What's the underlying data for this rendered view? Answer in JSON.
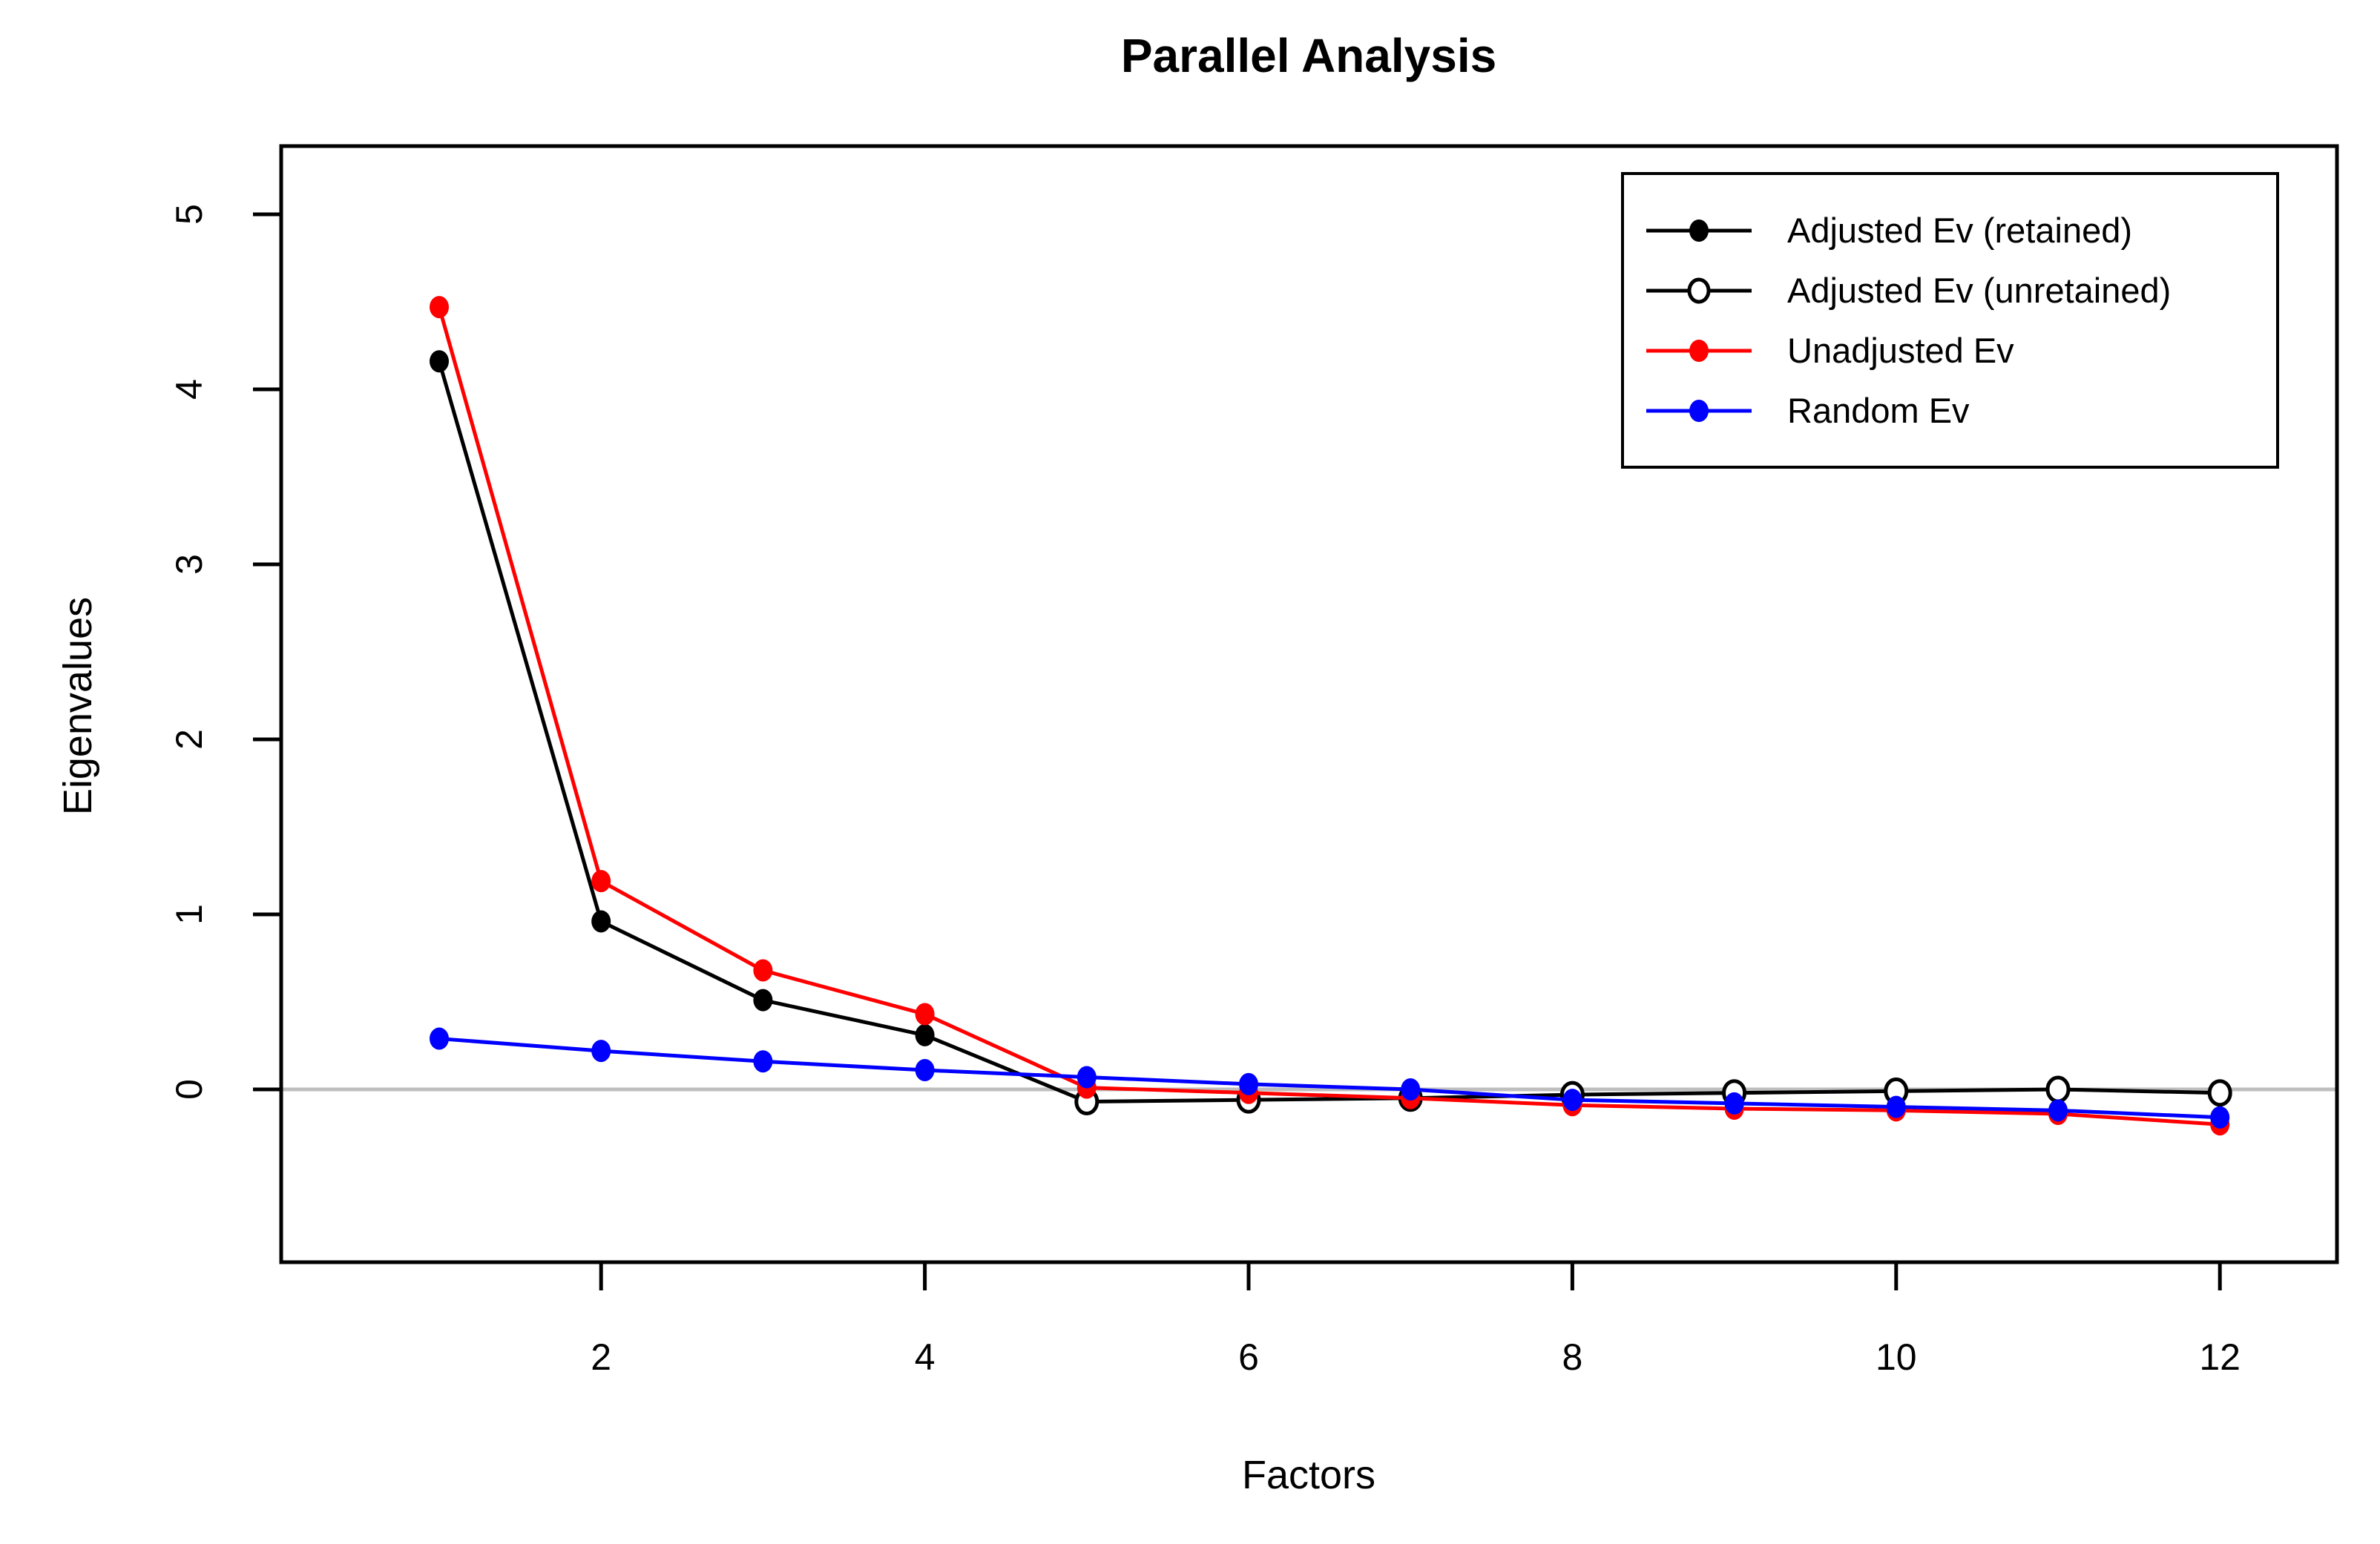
{
  "title": "Parallel Analysis",
  "chart_data": {
    "type": "line",
    "title": "Parallel Analysis",
    "xlabel": "Factors",
    "ylabel": "Eigenvalues",
    "x": [
      1,
      2,
      3,
      4,
      5,
      6,
      7,
      8,
      9,
      10,
      11,
      12
    ],
    "x_ticks": [
      2,
      4,
      6,
      8,
      10,
      12
    ],
    "y_ticks": [
      0,
      1,
      2,
      3,
      4,
      5
    ],
    "xlim": [
      0.02,
      12.73
    ],
    "ylim": [
      -0.99,
      5.39
    ],
    "grid": false,
    "zero_line": true,
    "zero_line_color": "#BEBEBE",
    "series": [
      {
        "name": "Adjusted Ev",
        "color": "#000000",
        "retained_count": 4,
        "values": [
          4.16,
          0.96,
          0.51,
          0.31,
          -0.07,
          -0.06,
          -0.05,
          -0.03,
          -0.02,
          -0.01,
          0.0,
          -0.02
        ]
      },
      {
        "name": "Unadjusted Ev",
        "color": "#FF0000",
        "values": [
          4.47,
          1.19,
          0.68,
          0.43,
          0.01,
          -0.02,
          -0.05,
          -0.09,
          -0.11,
          -0.12,
          -0.14,
          -0.2
        ]
      },
      {
        "name": "Random Ev",
        "color": "#0000FF",
        "values": [
          0.29,
          0.22,
          0.16,
          0.11,
          0.07,
          0.03,
          0.0,
          -0.06,
          -0.08,
          -0.1,
          -0.12,
          -0.16
        ]
      }
    ],
    "legend": {
      "position": "top-right",
      "entries": [
        {
          "label": "Adjusted Ev (retained)",
          "marker": "filled-circle",
          "color": "#000000"
        },
        {
          "label": "Adjusted Ev (unretained)",
          "marker": "open-circle",
          "color": "#000000"
        },
        {
          "label": "Unadjusted Ev",
          "marker": "filled-circle",
          "color": "#FF0000"
        },
        {
          "label": "Random Ev",
          "marker": "filled-circle",
          "color": "#0000FF"
        }
      ]
    }
  }
}
